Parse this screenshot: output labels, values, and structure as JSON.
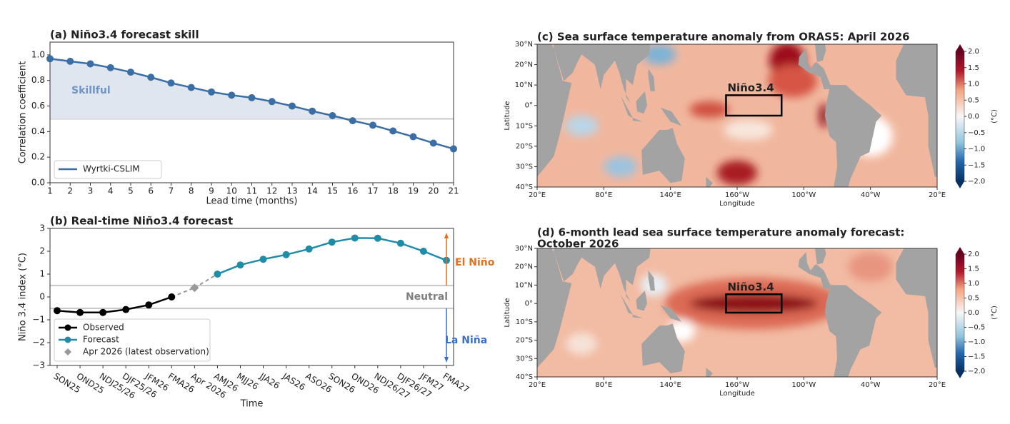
{
  "chart_data": [
    {
      "type": "line",
      "title": "(a) Niño3.4 forecast skill",
      "xlabel": "Lead time (months)",
      "ylabel": "Correlation coefficient",
      "x": [
        1,
        2,
        3,
        4,
        5,
        6,
        7,
        8,
        9,
        10,
        11,
        12,
        13,
        14,
        15,
        16,
        17,
        18,
        19,
        20,
        21
      ],
      "series": [
        {
          "name": "Wyrtki-CSLIM",
          "color": "#3a6ea5",
          "marker": "o",
          "values": [
            0.97,
            0.95,
            0.93,
            0.9,
            0.865,
            0.825,
            0.78,
            0.745,
            0.71,
            0.685,
            0.665,
            0.635,
            0.6,
            0.56,
            0.525,
            0.485,
            0.45,
            0.405,
            0.36,
            0.31,
            0.265
          ]
        }
      ],
      "xlim": [
        1,
        21
      ],
      "xticks": [
        1,
        2,
        3,
        4,
        5,
        6,
        7,
        8,
        9,
        10,
        11,
        12,
        13,
        14,
        15,
        16,
        17,
        18,
        19,
        20,
        21
      ],
      "ylim": [
        0,
        1.1
      ],
      "yticks": [
        {
          "value": 0,
          "label": "0.0"
        },
        0.2,
        0.4,
        0.6,
        0.8,
        {
          "value": 1,
          "label": "1.0"
        }
      ],
      "thresholds": [
        0.5
      ],
      "fill_label": "Skillful",
      "fill_color": "#dfe6f0",
      "legend": "lower left",
      "grid": false
    },
    {
      "type": "line",
      "title": "(b) Real-time Niño3.4 forecast",
      "xlabel": "Time",
      "ylabel": "Niño 3.4 index (°C)",
      "categories": [
        "SON25",
        "OND25",
        "NDJ25/26",
        "DJF25/26",
        "JFM26",
        "FMA26",
        "Apr 2026",
        "AMJ26",
        "MJJ26",
        "JJA26",
        "JAS26",
        "ASO26",
        "SON26",
        "OND26",
        "NDJ26/27",
        "DJF26/27",
        "JFM27",
        "FMA27"
      ],
      "series": [
        {
          "name": "Observed",
          "color": "#000000",
          "marker": "o",
          "values": [
            -0.6,
            -0.68,
            -0.68,
            -0.55,
            -0.35,
            0.0,
            null,
            null,
            null,
            null,
            null,
            null,
            null,
            null,
            null,
            null,
            null,
            null
          ]
        },
        {
          "name": "Forecast",
          "color": "#1f8ca8",
          "marker": "o",
          "values": [
            null,
            null,
            null,
            null,
            null,
            null,
            null,
            1.0,
            1.4,
            1.65,
            1.85,
            2.1,
            2.4,
            2.58,
            2.57,
            2.35,
            2.0,
            1.6
          ]
        },
        {
          "name": "Apr 2026 (latest observation)",
          "color": "#999999",
          "marker": "D",
          "values": [
            null,
            null,
            null,
            null,
            null,
            null,
            0.4,
            null,
            null,
            null,
            null,
            null,
            null,
            null,
            null,
            null,
            null,
            null
          ]
        }
      ],
      "ylim": [
        -3,
        3
      ],
      "yticks": [
        {
          "value": -3,
          "label": "−3"
        },
        {
          "value": -2,
          "label": "−2"
        },
        {
          "value": -1,
          "label": "−1"
        },
        0,
        1,
        2,
        3
      ],
      "thresholds": [
        -0.5,
        0.5
      ],
      "legend": "lower left",
      "grid": false,
      "annotations": [
        {
          "text": "El Niño",
          "color": "#e07020"
        },
        {
          "text": "Neutral",
          "color": "#808080"
        },
        {
          "text": "La Niña",
          "color": "#3a6fc4"
        }
      ]
    },
    {
      "type": "map",
      "title": [
        "(c) Sea surface temperature anomaly from ORAS5: April 2026"
      ],
      "xlabel": "Longitude",
      "ylabel": "Latitude",
      "xlim": [
        20,
        380
      ],
      "xticks": [
        {
          "value": 20,
          "label": "20°E"
        },
        {
          "value": 80,
          "label": "80°E"
        },
        {
          "value": 140,
          "label": "140°E"
        },
        {
          "value": 200,
          "label": "160°W"
        },
        {
          "value": 260,
          "label": "100°W"
        },
        {
          "value": 320,
          "label": "40°W"
        },
        {
          "value": 380,
          "label": "20°E"
        }
      ],
      "ylim": [
        -40,
        30
      ],
      "yticks": [
        {
          "value": 30,
          "label": "30°N"
        },
        {
          "value": 20,
          "label": "20°N"
        },
        {
          "value": 10,
          "label": "10°N"
        },
        {
          "value": 0,
          "label": "0°"
        },
        {
          "value": -10,
          "label": "10°S"
        },
        {
          "value": -20,
          "label": "20°S"
        },
        {
          "value": -30,
          "label": "30°S"
        },
        {
          "value": -40,
          "label": "40°S"
        }
      ],
      "box": {
        "label": "Niño3.4",
        "lon": [
          190,
          240
        ],
        "lat": [
          -5,
          5
        ]
      },
      "colorbar": {
        "label": "(°C)",
        "lim": [
          -2,
          2
        ],
        "ticks": [
          {
            "value": 2,
            "label": "2.0"
          },
          1.5,
          {
            "value": 1,
            "label": "1.0"
          },
          0.5,
          {
            "value": 0,
            "label": "0.0"
          },
          {
            "value": -0.5,
            "label": "−0.5"
          },
          {
            "value": -1,
            "label": "−1.0"
          },
          {
            "value": -1.5,
            "label": "−1.5"
          },
          {
            "value": -2,
            "label": "−2.0"
          }
        ]
      }
    },
    {
      "type": "map",
      "title": [
        "(d) 6-month lead sea surface temperature anomaly forecast:",
        "October 2026"
      ],
      "xlabel": "Longitude",
      "ylabel": "Latitude",
      "xlim": [
        20,
        380
      ],
      "xticks": [
        {
          "value": 20,
          "label": "20°E"
        },
        {
          "value": 80,
          "label": "80°E"
        },
        {
          "value": 140,
          "label": "140°E"
        },
        {
          "value": 200,
          "label": "160°W"
        },
        {
          "value": 260,
          "label": "100°W"
        },
        {
          "value": 320,
          "label": "40°W"
        },
        {
          "value": 380,
          "label": "20°E"
        }
      ],
      "ylim": [
        -40,
        30
      ],
      "yticks": [
        {
          "value": 30,
          "label": "30°N"
        },
        {
          "value": 20,
          "label": "20°N"
        },
        {
          "value": 10,
          "label": "10°N"
        },
        {
          "value": 0,
          "label": "0°"
        },
        {
          "value": -10,
          "label": "10°S"
        },
        {
          "value": -20,
          "label": "20°S"
        },
        {
          "value": -30,
          "label": "30°S"
        },
        {
          "value": -40,
          "label": "40°S"
        }
      ],
      "box": {
        "label": "Niño3.4",
        "lon": [
          190,
          240
        ],
        "lat": [
          -5,
          5
        ]
      },
      "colorbar": {
        "label": "(°C)",
        "lim": [
          -2,
          2
        ],
        "ticks": [
          {
            "value": 2,
            "label": "2.0"
          },
          1.5,
          {
            "value": 1,
            "label": "1.0"
          },
          0.5,
          {
            "value": 0,
            "label": "0.0"
          },
          {
            "value": -0.5,
            "label": "−0.5"
          },
          {
            "value": -1,
            "label": "−1.0"
          },
          {
            "value": -1.5,
            "label": "−1.5"
          },
          {
            "value": -2,
            "label": "−2.0"
          }
        ]
      }
    }
  ]
}
